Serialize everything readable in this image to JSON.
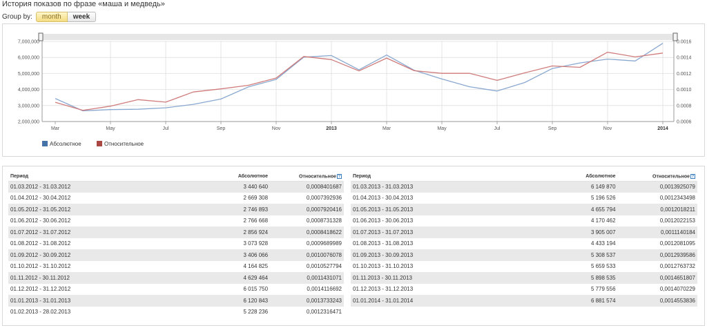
{
  "page": {
    "title": "История показов по фразе «маша и медведь»"
  },
  "group_by": {
    "label": "Group by:",
    "options": [
      {
        "label": "month",
        "active": true
      },
      {
        "label": "week",
        "active": false
      }
    ]
  },
  "colors": {
    "absolute": "#89a8d0",
    "relative": "#d07b7b",
    "legend_absolute": "#4572a7",
    "legend_relative": "#aa4643"
  },
  "chart_data": {
    "type": "line",
    "x": [
      "2012-03",
      "2012-04",
      "2012-05",
      "2012-06",
      "2012-07",
      "2012-08",
      "2012-09",
      "2012-10",
      "2012-11",
      "2012-12",
      "2013-01",
      "2013-02",
      "2013-03",
      "2013-04",
      "2013-05",
      "2013-06",
      "2013-07",
      "2013-08",
      "2013-09",
      "2013-10",
      "2013-11",
      "2013-12",
      "2014-01"
    ],
    "x_tick_labels": [
      "Mar",
      "May",
      "Jul",
      "Sep",
      "Nov",
      "2013",
      "Mar",
      "May",
      "Jul",
      "Sep",
      "Nov",
      "2014"
    ],
    "y_left_ticks": [
      "7,000,000",
      "6,000,000",
      "5,000,000",
      "4,000,000",
      "3,000,000",
      "2,000,000"
    ],
    "y_right_ticks": [
      "0.0016",
      "0.0014",
      "0.0012",
      "0.0010",
      "0.0008",
      "0.0006"
    ],
    "ylim_left": [
      2000000,
      7000000
    ],
    "ylim_right": [
      0.0006,
      0.0016
    ],
    "grid": true,
    "legend_position": "bottom-left",
    "series": [
      {
        "name": "Абсолютное",
        "axis": "left",
        "values": [
          3440640,
          2669308,
          2746893,
          2766668,
          2856924,
          3073928,
          3406066,
          4164825,
          4629464,
          6015750,
          6120843,
          5228236,
          6149870,
          5196526,
          4655794,
          4170462,
          3905007,
          4433194,
          5308537,
          5659533,
          5898535,
          5779556,
          6881574
        ]
      },
      {
        "name": "Относительное",
        "axis": "right",
        "values": [
          0.0008401687,
          0.0007392936,
          0.0007920416,
          0.0008731328,
          0.0008418622,
          0.0009689989,
          0.0010076078,
          0.0010527794,
          0.0011431071,
          0.0014116692,
          0.0013733243,
          0.0012316471,
          0.0013925079,
          0.0012343498,
          0.0012018211,
          0.0012022153,
          0.0011140184,
          0.0012081095,
          0.0012939586,
          0.0012763732,
          0.0014651807,
          0.0014070229,
          0.0014553836
        ]
      }
    ]
  },
  "table": {
    "headers": {
      "period": "Период",
      "absolute": "Абсолютное",
      "relative": "Относительное",
      "help": "?"
    },
    "left_rows": [
      {
        "period": "01.03.2012 - 31.03.2012",
        "absolute": "3 440 640",
        "relative": "0,0008401687"
      },
      {
        "period": "01.04.2012 - 30.04.2012",
        "absolute": "2 669 308",
        "relative": "0,0007392936"
      },
      {
        "period": "01.05.2012 - 31.05.2012",
        "absolute": "2 746 893",
        "relative": "0,0007920416"
      },
      {
        "period": "01.06.2012 - 30.06.2012",
        "absolute": "2 766 668",
        "relative": "0,0008731328"
      },
      {
        "period": "01.07.2012 - 31.07.2012",
        "absolute": "2 856 924",
        "relative": "0,0008418622"
      },
      {
        "period": "01.08.2012 - 31.08.2012",
        "absolute": "3 073 928",
        "relative": "0,0009689989"
      },
      {
        "period": "01.09.2012 - 30.09.2012",
        "absolute": "3 406 066",
        "relative": "0,0010076078"
      },
      {
        "period": "01.10.2012 - 31.10.2012",
        "absolute": "4 164 825",
        "relative": "0,0010527794"
      },
      {
        "period": "01.11.2012 - 30.11.2012",
        "absolute": "4 629 464",
        "relative": "0,0011431071"
      },
      {
        "period": "01.12.2012 - 31.12.2012",
        "absolute": "6 015 750",
        "relative": "0,0014116692"
      },
      {
        "period": "01.01.2013 - 31.01.2013",
        "absolute": "6 120 843",
        "relative": "0,0013733243"
      },
      {
        "period": "01.02.2013 - 28.02.2013",
        "absolute": "5 228 236",
        "relative": "0,0012316471"
      }
    ],
    "right_rows": [
      {
        "period": "01.03.2013 - 31.03.2013",
        "absolute": "6 149 870",
        "relative": "0,0013925079"
      },
      {
        "period": "01.04.2013 - 30.04.2013",
        "absolute": "5 196 526",
        "relative": "0,0012343498"
      },
      {
        "period": "01.05.2013 - 31.05.2013",
        "absolute": "4 655 794",
        "relative": "0,0012018211"
      },
      {
        "period": "01.06.2013 - 30.06.2013",
        "absolute": "4 170 462",
        "relative": "0,0012022153"
      },
      {
        "period": "01.07.2013 - 31.07.2013",
        "absolute": "3 905 007",
        "relative": "0,0011140184"
      },
      {
        "period": "01.08.2013 - 31.08.2013",
        "absolute": "4 433 194",
        "relative": "0,0012081095"
      },
      {
        "period": "01.09.2013 - 30.09.2013",
        "absolute": "5 308 537",
        "relative": "0,0012939586"
      },
      {
        "period": "01.10.2013 - 31.10.2013",
        "absolute": "5 659 533",
        "relative": "0,0012763732"
      },
      {
        "period": "01.11.2013 - 30.11.2013",
        "absolute": "5 898 535",
        "relative": "0,0014651807"
      },
      {
        "period": "01.12.2013 - 31.12.2013",
        "absolute": "5 779 556",
        "relative": "0,0014070229"
      },
      {
        "period": "01.01.2014 - 31.01.2014",
        "absolute": "6 881 574",
        "relative": "0,0014553836"
      }
    ]
  }
}
